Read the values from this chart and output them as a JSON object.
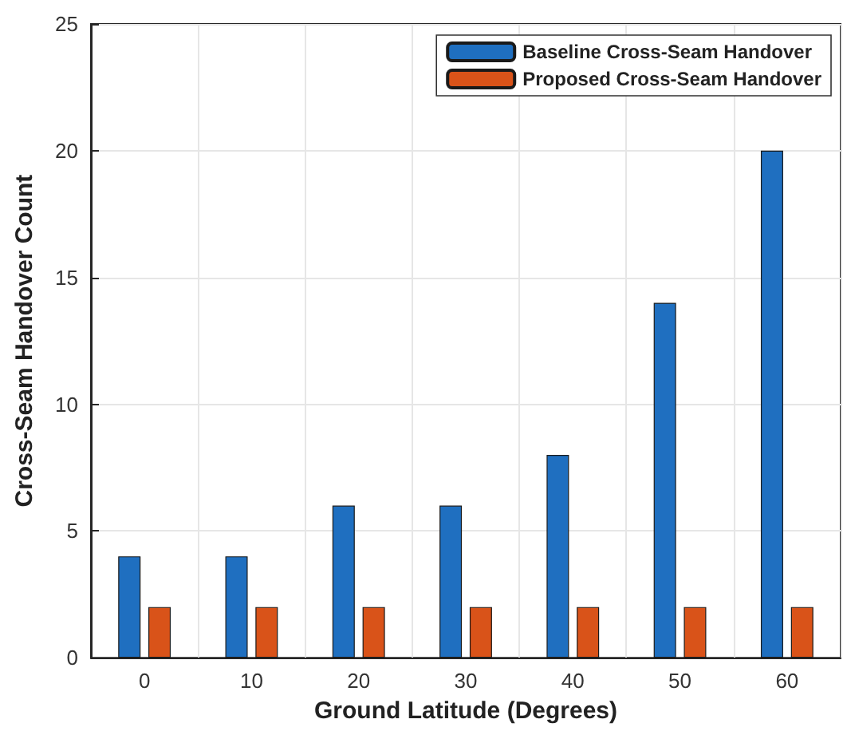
{
  "chart_data": {
    "type": "bar",
    "xlabel": "Ground Latitude (Degrees)",
    "ylabel": "Cross-Seam Handover Count",
    "categories": [
      "0",
      "10",
      "20",
      "30",
      "40",
      "50",
      "60"
    ],
    "series": [
      {
        "name": "Baseline Cross-Seam Handover",
        "color": "#1f6fc0",
        "values": [
          4,
          4,
          6,
          6,
          8,
          14,
          20
        ]
      },
      {
        "name": "Proposed Cross-Seam Handover",
        "color": "#d95319",
        "values": [
          2,
          2,
          2,
          2,
          2,
          2,
          2
        ]
      }
    ],
    "ylim": [
      0,
      25
    ],
    "yticks": [
      0,
      5,
      10,
      15,
      20,
      25
    ],
    "grid": true,
    "legend": "top right"
  }
}
